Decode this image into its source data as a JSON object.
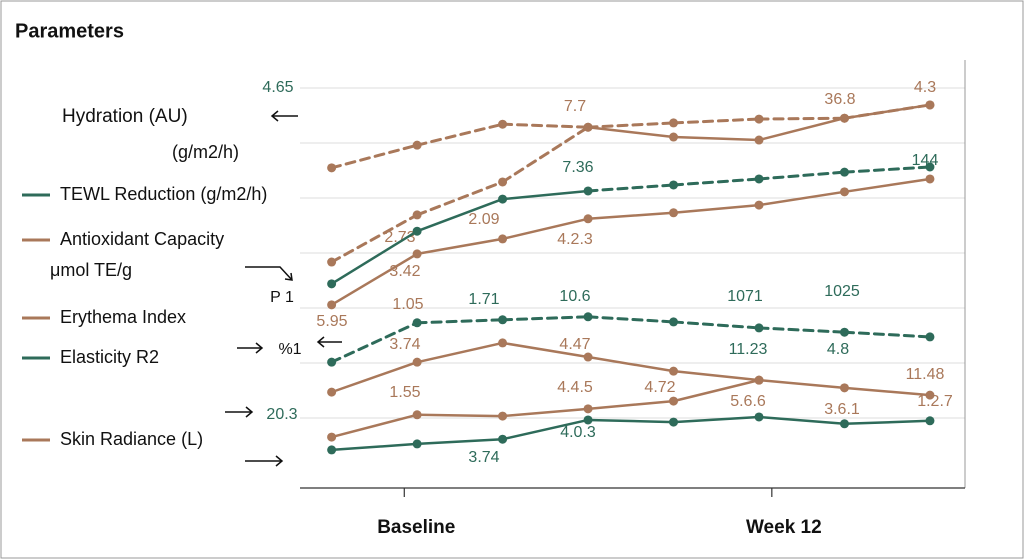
{
  "chart_data": {
    "type": "line",
    "title": "Parameters",
    "x": [
      0,
      1,
      2,
      3,
      4,
      5,
      6,
      7
    ],
    "xlim": [
      -0.37,
      7.41
    ],
    "xticks": [
      {
        "value": 0.85,
        "label": "Baseline"
      },
      {
        "value": 5.15,
        "label": "Week 12"
      }
    ],
    "ylim": [
      0,
      100
    ],
    "series": [
      {
        "color": "#a9785a",
        "style": "dashed",
        "values": [
          74.8,
          80.1,
          85.0,
          84.3,
          85.3,
          86.2,
          86.4,
          89.5
        ]
      },
      {
        "color": "#a9785a",
        "style": "dashed-solid",
        "values": [
          52.8,
          63.8,
          71.5,
          84.3,
          82.0,
          81.3,
          86.4,
          89.5
        ]
      },
      {
        "color": "#2e6b5a",
        "style": "solid-dashed",
        "values": [
          47.7,
          60.0,
          67.5,
          69.4,
          70.8,
          72.2,
          73.8,
          75.0
        ]
      },
      {
        "color": "#a9785a",
        "style": "solid",
        "values": [
          42.8,
          54.7,
          58.2,
          62.9,
          64.3,
          66.1,
          69.2,
          72.2
        ]
      },
      {
        "color": "#2e6b5a",
        "style": "dashed",
        "values": [
          29.4,
          38.6,
          39.3,
          40.0,
          38.8,
          37.4,
          36.4,
          35.3
        ]
      },
      {
        "color": "#a9785a",
        "style": "solid",
        "values": [
          22.4,
          29.4,
          33.9,
          30.6,
          27.3,
          25.2,
          23.4,
          21.7
        ]
      },
      {
        "color": "#a9785a",
        "style": "solid",
        "values": [
          11.9,
          17.1,
          16.8,
          18.5,
          20.3,
          25.2,
          null,
          null
        ]
      },
      {
        "color": "#2e6b5a",
        "style": "solid",
        "values": [
          8.9,
          10.3,
          11.4,
          15.9,
          15.4,
          16.6,
          15.0,
          15.7
        ]
      }
    ],
    "legend": [
      {
        "label": "Hydration (AU)"
      },
      {
        "label": "(g/m2/h)"
      },
      {
        "label": "TEWL Reduction (g/m2/h)",
        "color": "#2e6b5a"
      },
      {
        "label": "Antioxidant Capacity",
        "color": "#a9785a"
      },
      {
        "label": "μmol TE/g"
      },
      {
        "label": "Erythema Index",
        "color": "#a9785a"
      },
      {
        "label": "Elasticity R2",
        "color": "#2e6b5a"
      },
      {
        "label": "Skin Radiance (L)",
        "color": "#a9785a"
      }
    ],
    "annotations": [
      "4.65",
      "7.7",
      "36.8",
      "4.3",
      "7.36",
      "144",
      "2.73",
      "2.09",
      "4.2.3",
      "3.42",
      "P 1",
      "1.05",
      "1.71",
      "10.6",
      "1071",
      "1025",
      "5.95",
      "3.74",
      "4.47",
      "11.23",
      "4.8",
      "%1",
      "1.55",
      "4.4.5",
      "4.72",
      "5.6.6",
      "3.6.1",
      "11.48",
      "1.2.7",
      "20.3",
      "4.0.3",
      "3.74"
    ]
  }
}
